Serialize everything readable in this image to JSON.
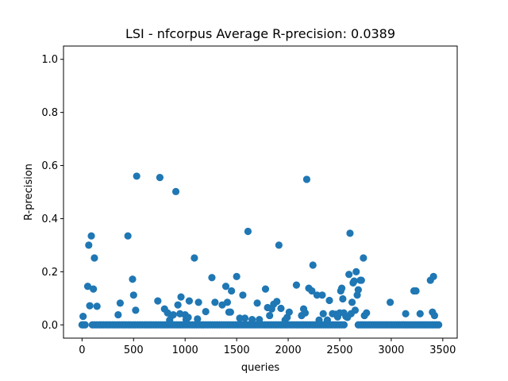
{
  "chart_data": {
    "type": "scatter",
    "title": "LSI - nfcorpus  Average R-precision: 0.0389",
    "xlabel": "queries",
    "ylabel": "R-precision",
    "xlim": [
      -180,
      3640
    ],
    "ylim": [
      -0.05,
      1.05
    ],
    "xticks": [
      0,
      500,
      1000,
      1500,
      2000,
      2500,
      3000,
      3500
    ],
    "yticks": [
      0.0,
      0.2,
      0.4,
      0.6,
      0.8,
      1.0
    ],
    "xtick_labels": [
      "0",
      "500",
      "1000",
      "1500",
      "2000",
      "2500",
      "3000",
      "3500"
    ],
    "ytick_labels": [
      "0.0",
      "0.2",
      "0.4",
      "0.6",
      "0.8",
      "1.0"
    ],
    "grid": false,
    "legend": "none",
    "marker_color": "#1f77b4",
    "zero_segments": [
      {
        "x_start": 0,
        "x_end": 40,
        "step": 15
      },
      {
        "x_start": 100,
        "x_end": 2560,
        "step": 22
      },
      {
        "x_start": 2680,
        "x_end": 3470,
        "step": 20
      }
    ],
    "points": [
      {
        "x": 10,
        "y": 0.032
      },
      {
        "x": 55,
        "y": 0.145
      },
      {
        "x": 65,
        "y": 0.3
      },
      {
        "x": 75,
        "y": 0.072
      },
      {
        "x": 90,
        "y": 0.335
      },
      {
        "x": 110,
        "y": 0.135
      },
      {
        "x": 120,
        "y": 0.252
      },
      {
        "x": 145,
        "y": 0.07
      },
      {
        "x": 350,
        "y": 0.038
      },
      {
        "x": 370,
        "y": 0.082
      },
      {
        "x": 445,
        "y": 0.335
      },
      {
        "x": 490,
        "y": 0.172
      },
      {
        "x": 500,
        "y": 0.112
      },
      {
        "x": 520,
        "y": 0.055
      },
      {
        "x": 530,
        "y": 0.56
      },
      {
        "x": 735,
        "y": 0.09
      },
      {
        "x": 755,
        "y": 0.555
      },
      {
        "x": 800,
        "y": 0.06
      },
      {
        "x": 830,
        "y": 0.045
      },
      {
        "x": 850,
        "y": 0.018
      },
      {
        "x": 870,
        "y": 0.035
      },
      {
        "x": 885,
        "y": 0.038
      },
      {
        "x": 910,
        "y": 0.502
      },
      {
        "x": 930,
        "y": 0.075
      },
      {
        "x": 950,
        "y": 0.042
      },
      {
        "x": 960,
        "y": 0.105
      },
      {
        "x": 1000,
        "y": 0.038
      },
      {
        "x": 1010,
        "y": 0.02
      },
      {
        "x": 1030,
        "y": 0.028
      },
      {
        "x": 1040,
        "y": 0.09
      },
      {
        "x": 1090,
        "y": 0.252
      },
      {
        "x": 1120,
        "y": 0.022
      },
      {
        "x": 1130,
        "y": 0.085
      },
      {
        "x": 1200,
        "y": 0.05
      },
      {
        "x": 1260,
        "y": 0.178
      },
      {
        "x": 1290,
        "y": 0.085
      },
      {
        "x": 1360,
        "y": 0.075
      },
      {
        "x": 1395,
        "y": 0.145
      },
      {
        "x": 1410,
        "y": 0.085
      },
      {
        "x": 1425,
        "y": 0.048
      },
      {
        "x": 1440,
        "y": 0.048
      },
      {
        "x": 1450,
        "y": 0.128
      },
      {
        "x": 1500,
        "y": 0.182
      },
      {
        "x": 1530,
        "y": 0.025
      },
      {
        "x": 1560,
        "y": 0.112
      },
      {
        "x": 1580,
        "y": 0.025
      },
      {
        "x": 1610,
        "y": 0.352
      },
      {
        "x": 1650,
        "y": 0.02
      },
      {
        "x": 1700,
        "y": 0.082
      },
      {
        "x": 1720,
        "y": 0.02
      },
      {
        "x": 1780,
        "y": 0.135
      },
      {
        "x": 1800,
        "y": 0.065
      },
      {
        "x": 1820,
        "y": 0.035
      },
      {
        "x": 1840,
        "y": 0.06
      },
      {
        "x": 1860,
        "y": 0.078
      },
      {
        "x": 1890,
        "y": 0.088
      },
      {
        "x": 1910,
        "y": 0.3
      },
      {
        "x": 1930,
        "y": 0.062
      },
      {
        "x": 1970,
        "y": 0.018
      },
      {
        "x": 1990,
        "y": 0.028
      },
      {
        "x": 2010,
        "y": 0.048
      },
      {
        "x": 2080,
        "y": 0.15
      },
      {
        "x": 2130,
        "y": 0.035
      },
      {
        "x": 2150,
        "y": 0.06
      },
      {
        "x": 2165,
        "y": 0.045
      },
      {
        "x": 2180,
        "y": 0.548
      },
      {
        "x": 2200,
        "y": 0.138
      },
      {
        "x": 2230,
        "y": 0.128
      },
      {
        "x": 2240,
        "y": 0.225
      },
      {
        "x": 2280,
        "y": 0.112
      },
      {
        "x": 2300,
        "y": 0.018
      },
      {
        "x": 2330,
        "y": 0.112
      },
      {
        "x": 2340,
        "y": 0.042
      },
      {
        "x": 2380,
        "y": 0.018
      },
      {
        "x": 2400,
        "y": 0.092
      },
      {
        "x": 2430,
        "y": 0.042
      },
      {
        "x": 2460,
        "y": 0.04
      },
      {
        "x": 2480,
        "y": 0.03
      },
      {
        "x": 2500,
        "y": 0.045
      },
      {
        "x": 2510,
        "y": 0.128
      },
      {
        "x": 2520,
        "y": 0.138
      },
      {
        "x": 2530,
        "y": 0.098
      },
      {
        "x": 2540,
        "y": 0.045
      },
      {
        "x": 2560,
        "y": 0.032
      },
      {
        "x": 2575,
        "y": 0.028
      },
      {
        "x": 2590,
        "y": 0.19
      },
      {
        "x": 2600,
        "y": 0.345
      },
      {
        "x": 2610,
        "y": 0.042
      },
      {
        "x": 2620,
        "y": 0.085
      },
      {
        "x": 2630,
        "y": 0.158
      },
      {
        "x": 2640,
        "y": 0.165
      },
      {
        "x": 2650,
        "y": 0.055
      },
      {
        "x": 2660,
        "y": 0.2
      },
      {
        "x": 2670,
        "y": 0.112
      },
      {
        "x": 2680,
        "y": 0.132
      },
      {
        "x": 2700,
        "y": 0.168
      },
      {
        "x": 2710,
        "y": 0.168
      },
      {
        "x": 2730,
        "y": 0.252
      },
      {
        "x": 2740,
        "y": 0.035
      },
      {
        "x": 2760,
        "y": 0.045
      },
      {
        "x": 2990,
        "y": 0.085
      },
      {
        "x": 3140,
        "y": 0.042
      },
      {
        "x": 3220,
        "y": 0.128
      },
      {
        "x": 3240,
        "y": 0.128
      },
      {
        "x": 3280,
        "y": 0.042
      },
      {
        "x": 3380,
        "y": 0.168
      },
      {
        "x": 3400,
        "y": 0.048
      },
      {
        "x": 3410,
        "y": 0.182
      },
      {
        "x": 3420,
        "y": 0.035
      }
    ]
  }
}
